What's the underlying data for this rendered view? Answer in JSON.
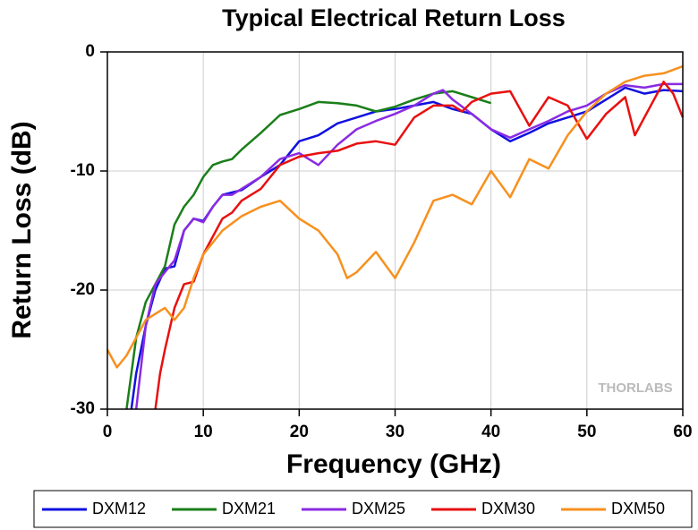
{
  "chart_data": {
    "type": "line",
    "title": "Typical Electrical Return Loss",
    "x_label": "Frequency (GHz)",
    "y_label": "Return Loss (dB)",
    "watermark": "THORLABS",
    "xlim": [
      0,
      60
    ],
    "xticks": [
      0,
      10,
      20,
      30,
      40,
      50,
      60
    ],
    "ylim": [
      -30,
      0
    ],
    "yticks": [
      -30,
      -20,
      -10,
      0
    ],
    "grid": true,
    "legend": "bottom",
    "series": [
      {
        "name": "DXM12",
        "color": "#1010e0",
        "x": [
          2.5,
          3,
          4,
          5,
          6,
          7,
          8,
          9,
          10,
          11,
          12,
          13,
          14,
          16,
          18,
          20,
          22,
          24,
          26,
          28,
          30,
          32,
          34,
          36,
          38,
          40,
          42,
          44,
          46,
          48,
          50,
          52,
          54,
          56,
          58,
          60
        ],
        "values": [
          -30,
          -27,
          -23,
          -20,
          -18.2,
          -18,
          -15,
          -14,
          -14.2,
          -13,
          -12,
          -11.8,
          -11.6,
          -10.5,
          -9.5,
          -7.5,
          -7,
          -6,
          -5.5,
          -5,
          -4.8,
          -4.5,
          -4.2,
          -4.8,
          -5.2,
          -6.5,
          -7.5,
          -6.8,
          -6,
          -5.5,
          -5,
          -4,
          -3,
          -3.5,
          -3.2,
          -3.3
        ]
      },
      {
        "name": "DXM21",
        "color": "#1a7f1a",
        "x": [
          2,
          3,
          4,
          5,
          6,
          7,
          8,
          9,
          10,
          11,
          12,
          13,
          14,
          16,
          18,
          20,
          22,
          24,
          26,
          28,
          30,
          32,
          34,
          36,
          38,
          40
        ],
        "values": [
          -30,
          -24,
          -21,
          -19.5,
          -18,
          -14.5,
          -13,
          -12,
          -10.5,
          -9.5,
          -9.2,
          -9,
          -8.2,
          -6.8,
          -5.3,
          -4.8,
          -4.2,
          -4.3,
          -4.5,
          -5,
          -4.6,
          -4,
          -3.5,
          -3.3,
          -3.8,
          -4.3
        ]
      },
      {
        "name": "DXM25",
        "color": "#8a2be2",
        "x": [
          3,
          4,
          5,
          6,
          7,
          8,
          9,
          10,
          11,
          12,
          13,
          14,
          16,
          18,
          20,
          22,
          24,
          26,
          28,
          30,
          32,
          34,
          35,
          36,
          38,
          40,
          42,
          44,
          46,
          48,
          50,
          52,
          54,
          56,
          58,
          60
        ],
        "values": [
          -30,
          -23,
          -19.5,
          -18.5,
          -17.5,
          -15,
          -14,
          -14.3,
          -13,
          -12,
          -12,
          -11.5,
          -10.5,
          -9,
          -8.5,
          -9.5,
          -7.8,
          -6.5,
          -5.8,
          -5.2,
          -4.5,
          -3.5,
          -3.2,
          -4,
          -5.2,
          -6.5,
          -7.2,
          -6.5,
          -5.8,
          -5,
          -4.5,
          -3.5,
          -2.8,
          -3,
          -2.7,
          -2.7
        ]
      },
      {
        "name": "DXM30",
        "color": "#e81010",
        "x": [
          5,
          5.5,
          6,
          7,
          8,
          9,
          10,
          11,
          12,
          13,
          14,
          16,
          18,
          20,
          22,
          24,
          26,
          28,
          30,
          32,
          34,
          36,
          37,
          38,
          40,
          42,
          44,
          46,
          48,
          50,
          52,
          54,
          55,
          56,
          58,
          59,
          60
        ],
        "values": [
          -30,
          -27,
          -25,
          -21.5,
          -19.5,
          -19.3,
          -17,
          -15.5,
          -14,
          -13.5,
          -12.5,
          -11.5,
          -9.5,
          -8.8,
          -8.5,
          -8.3,
          -7.7,
          -7.5,
          -7.8,
          -5.5,
          -4.5,
          -4.5,
          -5,
          -4.2,
          -3.5,
          -3.3,
          -6.2,
          -3.8,
          -4.5,
          -7.3,
          -5.2,
          -3.8,
          -7,
          -5.5,
          -2.5,
          -3.5,
          -5.5
        ]
      },
      {
        "name": "DXM50",
        "color": "#f7901e",
        "x": [
          0,
          1,
          2,
          3,
          4,
          5,
          6,
          7,
          8,
          9,
          10,
          12,
          14,
          16,
          18,
          20,
          22,
          24,
          25,
          26,
          28,
          30,
          32,
          34,
          36,
          38,
          40,
          42,
          44,
          46,
          48,
          50,
          52,
          54,
          56,
          58,
          60
        ],
        "values": [
          -25,
          -26.5,
          -25.5,
          -24,
          -22.5,
          -22,
          -21.5,
          -22.5,
          -21.5,
          -19,
          -17,
          -15,
          -13.8,
          -13,
          -12.5,
          -14,
          -15,
          -17,
          -19,
          -18.5,
          -16.8,
          -19,
          -16,
          -12.5,
          -12,
          -12.8,
          -10,
          -12.2,
          -9,
          -9.8,
          -7,
          -5,
          -3.5,
          -2.5,
          -2,
          -1.8,
          -1.2
        ]
      }
    ]
  }
}
